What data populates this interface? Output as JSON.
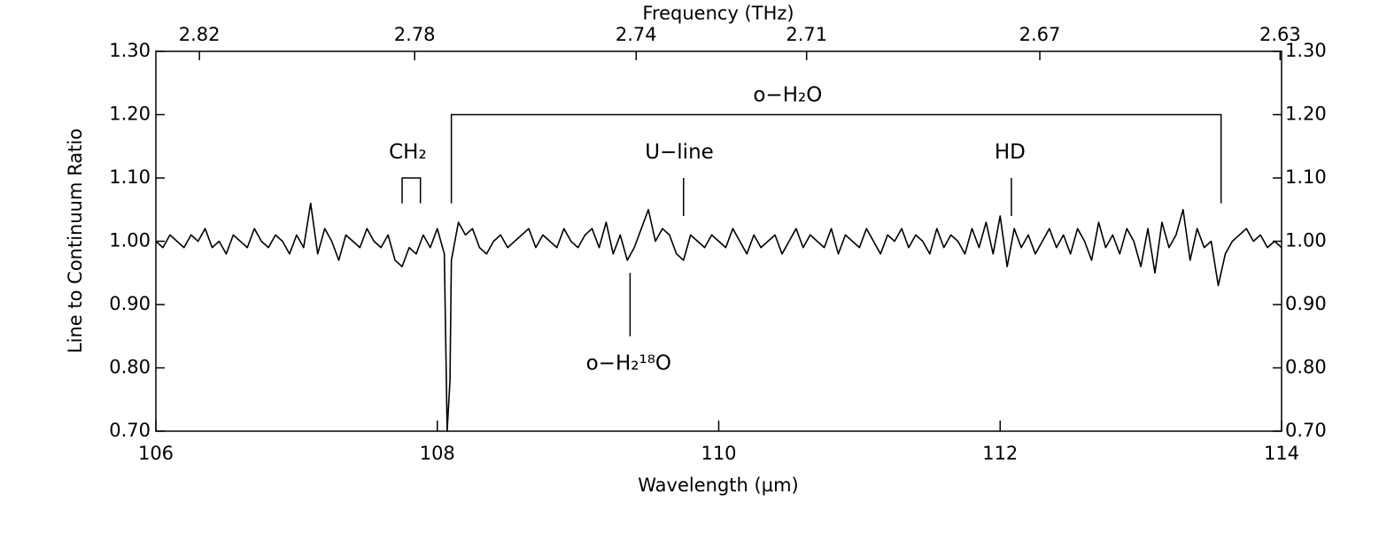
{
  "chart_data": {
    "type": "line",
    "xlabel": "Wavelength (µm)",
    "ylabel": "Line to Continuum Ratio",
    "x2label": "Frequency (THz)",
    "color": "#000000",
    "xlim": [
      106,
      114
    ],
    "xticks": [
      106,
      108,
      110,
      112,
      114
    ],
    "ylim": [
      0.7,
      1.3
    ],
    "yticks": [
      {
        "value": 0.7,
        "label": "0.70"
      },
      {
        "value": 0.8,
        "label": "0.80"
      },
      {
        "value": 0.9,
        "label": "0.90"
      },
      {
        "value": 1.0,
        "label": "1.00"
      },
      {
        "value": 1.1,
        "label": "1.10"
      },
      {
        "value": 1.2,
        "label": "1.20"
      },
      {
        "value": 1.3,
        "label": "1.30"
      }
    ],
    "x2ticks": [
      2.82,
      2.78,
      2.74,
      2.71,
      2.67,
      2.63
    ],
    "x": [
      106.0,
      106.05,
      106.1,
      106.15,
      106.2,
      106.25,
      106.3,
      106.35,
      106.4,
      106.45,
      106.5,
      106.55,
      106.6,
      106.65,
      106.7,
      106.75,
      106.8,
      106.85,
      106.9,
      106.95,
      107.0,
      107.05,
      107.1,
      107.15,
      107.2,
      107.25,
      107.3,
      107.35,
      107.4,
      107.45,
      107.5,
      107.55,
      107.6,
      107.65,
      107.7,
      107.75,
      107.8,
      107.85,
      107.9,
      107.95,
      108.0,
      108.05,
      108.07,
      108.09,
      108.1,
      108.15,
      108.2,
      108.25,
      108.3,
      108.35,
      108.4,
      108.45,
      108.5,
      108.55,
      108.6,
      108.65,
      108.7,
      108.75,
      108.8,
      108.85,
      108.9,
      108.95,
      109.0,
      109.05,
      109.1,
      109.15,
      109.2,
      109.25,
      109.3,
      109.35,
      109.4,
      109.45,
      109.5,
      109.55,
      109.6,
      109.65,
      109.7,
      109.75,
      109.8,
      109.85,
      109.9,
      109.95,
      110.0,
      110.05,
      110.1,
      110.15,
      110.2,
      110.25,
      110.3,
      110.35,
      110.4,
      110.45,
      110.5,
      110.55,
      110.6,
      110.65,
      110.7,
      110.75,
      110.8,
      110.85,
      110.9,
      110.95,
      111.0,
      111.05,
      111.1,
      111.15,
      111.2,
      111.25,
      111.3,
      111.35,
      111.4,
      111.45,
      111.5,
      111.55,
      111.6,
      111.65,
      111.7,
      111.75,
      111.8,
      111.85,
      111.9,
      111.95,
      112.0,
      112.05,
      112.1,
      112.15,
      112.2,
      112.25,
      112.3,
      112.35,
      112.4,
      112.45,
      112.5,
      112.55,
      112.6,
      112.65,
      112.7,
      112.75,
      112.8,
      112.85,
      112.9,
      112.95,
      113.0,
      113.05,
      113.1,
      113.15,
      113.2,
      113.25,
      113.3,
      113.35,
      113.4,
      113.45,
      113.5,
      113.55,
      113.6,
      113.65,
      113.7,
      113.75,
      113.8,
      113.85,
      113.9,
      113.95,
      114.0
    ],
    "values": [
      1.0,
      0.99,
      1.01,
      1.0,
      0.99,
      1.01,
      1.0,
      1.02,
      0.99,
      1.0,
      0.98,
      1.01,
      1.0,
      0.99,
      1.02,
      1.0,
      0.99,
      1.01,
      1.0,
      0.98,
      1.01,
      0.99,
      1.06,
      0.98,
      1.02,
      1.0,
      0.97,
      1.01,
      1.0,
      0.99,
      1.02,
      1.0,
      0.99,
      1.01,
      0.97,
      0.96,
      0.99,
      0.98,
      1.01,
      0.99,
      1.02,
      0.98,
      0.7,
      0.78,
      0.97,
      1.03,
      1.01,
      1.02,
      0.99,
      0.98,
      1.0,
      1.01,
      0.99,
      1.0,
      1.01,
      1.02,
      0.99,
      1.01,
      1.0,
      0.99,
      1.02,
      1.0,
      0.99,
      1.01,
      1.02,
      0.99,
      1.03,
      0.98,
      1.01,
      0.97,
      0.99,
      1.02,
      1.05,
      1.0,
      1.02,
      1.01,
      0.98,
      0.97,
      1.01,
      1.0,
      0.99,
      1.01,
      1.0,
      0.99,
      1.02,
      1.0,
      0.98,
      1.01,
      0.99,
      1.0,
      1.01,
      0.98,
      1.0,
      1.02,
      0.99,
      1.01,
      1.0,
      0.99,
      1.02,
      0.98,
      1.01,
      1.0,
      0.99,
      1.02,
      1.0,
      0.98,
      1.01,
      1.0,
      1.02,
      0.99,
      1.01,
      1.0,
      0.98,
      1.02,
      0.99,
      1.01,
      1.0,
      0.98,
      1.02,
      0.99,
      1.03,
      0.98,
      1.04,
      0.96,
      1.02,
      0.99,
      1.01,
      0.98,
      1.0,
      1.02,
      0.99,
      1.01,
      0.98,
      1.02,
      1.0,
      0.97,
      1.03,
      0.99,
      1.01,
      0.98,
      1.02,
      1.0,
      0.96,
      1.02,
      0.95,
      1.03,
      0.99,
      1.01,
      1.05,
      0.97,
      1.02,
      0.99,
      1.0,
      0.93,
      0.98,
      1.0,
      1.01,
      1.02,
      1.0,
      1.01,
      0.99,
      1.0,
      0.99
    ],
    "annotations": [
      {
        "text": "CH₂",
        "text_x": 107.79,
        "text_y": 1.14,
        "x": [
          107.75,
          107.88
        ],
        "y_top": 1.1,
        "y_bottom": 1.06
      },
      {
        "text": "o−H₂O",
        "text_x": 110.49,
        "text_y": 1.23,
        "x": [
          108.1,
          113.57
        ],
        "y_top": 1.2,
        "y_bottom": 1.06
      },
      {
        "text": "U−line",
        "text_x": 109.72,
        "text_y": 1.14,
        "x": [
          109.75
        ],
        "y_top": 1.1,
        "y_bottom": 1.04
      },
      {
        "text": "HD",
        "text_x": 112.07,
        "text_y": 1.14,
        "x": [
          112.08
        ],
        "y_top": 1.1,
        "y_bottom": 1.04
      },
      {
        "text": "o−H₂¹⁸O",
        "text_x": 109.36,
        "text_y": 0.806,
        "x": [
          109.37
        ],
        "y_top": 0.95,
        "y_bottom": 0.85
      }
    ]
  }
}
